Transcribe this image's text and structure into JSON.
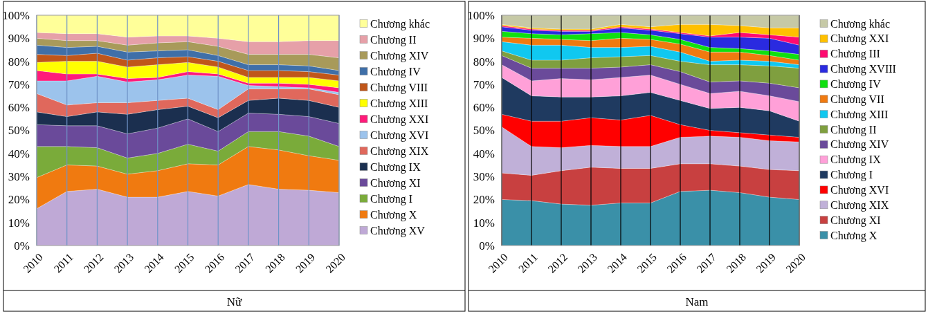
{
  "chart_data": [
    {
      "type": "area",
      "title": "Nữ",
      "stacked": true,
      "legend": "right",
      "grid": "x",
      "categories": [
        "2010",
        "2011",
        "2012",
        "2013",
        "2014",
        "2015",
        "2016",
        "2017",
        "2018",
        "2019",
        "2020"
      ],
      "ylim": [
        0,
        100
      ],
      "yticks": [
        {
          "value": 0,
          "label": "0%"
        },
        {
          "value": 10,
          "label": "10%"
        },
        {
          "value": 20,
          "label": "20%"
        },
        {
          "value": 30,
          "label": "30%"
        },
        {
          "value": 40,
          "label": "40%"
        },
        {
          "value": 50,
          "label": "50%"
        },
        {
          "value": 60,
          "label": "60%"
        },
        {
          "value": 70,
          "label": "70%"
        },
        {
          "value": 80,
          "label": "80%"
        },
        {
          "value": 90,
          "label": "90%"
        },
        {
          "value": 100,
          "label": "100%"
        }
      ],
      "series": [
        {
          "name": "Chương XV",
          "color": "#bfa9d6",
          "values": [
            16,
            23.5,
            24.5,
            21,
            21,
            23.5,
            21.5,
            26.5,
            24.5,
            24,
            23
          ]
        },
        {
          "name": "Chương X",
          "color": "#f07a10",
          "values": [
            13.5,
            11.5,
            10,
            10,
            11.5,
            12,
            13.5,
            16.5,
            17,
            15,
            14
          ]
        },
        {
          "name": "Chương I",
          "color": "#7aab3a",
          "values": [
            13.5,
            8,
            8,
            7,
            7.5,
            8.5,
            6,
            6.5,
            8,
            8.5,
            6
          ]
        },
        {
          "name": "Chương XI",
          "color": "#6a4a9a",
          "values": [
            9.5,
            9,
            9.5,
            10.5,
            11,
            11,
            8.5,
            8,
            7.5,
            8.5,
            10
          ]
        },
        {
          "name": "Chương IX",
          "color": "#1b2f4f",
          "values": [
            5.5,
            4,
            6,
            8.5,
            8,
            5.5,
            6,
            5.5,
            7,
            7,
            7
          ]
        },
        {
          "name": "Chương XIX",
          "color": "#e0685c",
          "values": [
            8,
            5,
            4,
            5,
            4,
            3.5,
            3.5,
            5,
            4,
            5,
            5.5
          ]
        },
        {
          "name": "Chương XVI",
          "color": "#9cc3ec",
          "values": [
            5.5,
            10.5,
            11.5,
            9,
            9,
            10,
            14.5,
            1.5,
            1,
            0.5,
            1
          ]
        },
        {
          "name": "Chương XXI",
          "color": "#ff1a7a",
          "values": [
            4.5,
            3,
            1,
            1.5,
            1,
            1.5,
            1,
            1,
            1.5,
            1.5,
            2
          ]
        },
        {
          "name": "Chương XIII",
          "color": "#ffff00",
          "values": [
            3.5,
            5.5,
            5.5,
            5,
            5.5,
            4,
            3,
            2.5,
            2.5,
            3,
            3
          ]
        },
        {
          "name": "Chương VIII",
          "color": "#c0561a",
          "values": [
            3.5,
            2.5,
            3.5,
            3,
            3,
            2.5,
            2.5,
            3,
            3,
            2.5,
            2.5
          ]
        },
        {
          "name": "Chương IV",
          "color": "#3f6fa8",
          "values": [
            4,
            3.5,
            3,
            3.5,
            3,
            3,
            2.5,
            2.5,
            2.5,
            2.5,
            2
          ]
        },
        {
          "name": "Chương XIV",
          "color": "#a89a5a",
          "values": [
            3,
            3,
            2.5,
            3,
            3.5,
            3.5,
            4,
            4.5,
            4.5,
            5,
            5.5
          ]
        },
        {
          "name": "Chương II",
          "color": "#e6a0a8",
          "values": [
            2.5,
            3,
            3,
            3.5,
            3,
            2.5,
            3.5,
            5.5,
            5.5,
            6,
            7.5
          ]
        },
        {
          "name": "Chương khác",
          "color": "#ffff99",
          "values": [
            7.5,
            8,
            8,
            9.5,
            9,
            9,
            10,
            11.5,
            11.5,
            11,
            11
          ]
        }
      ]
    },
    {
      "type": "area",
      "title": "Nam",
      "stacked": true,
      "legend": "right",
      "grid": "x",
      "categories": [
        "2010",
        "2011",
        "2012",
        "2013",
        "2014",
        "2015",
        "2016",
        "2017",
        "2018",
        "2019",
        "2020"
      ],
      "ylim": [
        0,
        100
      ],
      "yticks": [
        {
          "value": 0,
          "label": "0%"
        },
        {
          "value": 10,
          "label": "10%"
        },
        {
          "value": 20,
          "label": "20%"
        },
        {
          "value": 30,
          "label": "30%"
        },
        {
          "value": 40,
          "label": "40%"
        },
        {
          "value": 50,
          "label": "50%"
        },
        {
          "value": 60,
          "label": "60%"
        },
        {
          "value": 70,
          "label": "70%"
        },
        {
          "value": 80,
          "label": "80%"
        },
        {
          "value": 90,
          "label": "90%"
        },
        {
          "value": 100,
          "label": "100%"
        }
      ],
      "series": [
        {
          "name": "Chương X",
          "color": "#3a90a8",
          "values": [
            20,
            19.5,
            18,
            17.5,
            18.5,
            18.5,
            23.5,
            24,
            23,
            21,
            20
          ]
        },
        {
          "name": "Chương XI",
          "color": "#c84040",
          "values": [
            11.5,
            11,
            14.5,
            16.5,
            15,
            15,
            12,
            11.5,
            11.5,
            12,
            12.5
          ]
        },
        {
          "name": "Chương XIX",
          "color": "#c0b0d8",
          "values": [
            20,
            12.5,
            10,
            9.5,
            9.5,
            9.5,
            11.5,
            12,
            12.5,
            12.5,
            12.5
          ]
        },
        {
          "name": "Chương XVI",
          "color": "#ff0000",
          "values": [
            5.5,
            11,
            11.5,
            12,
            11.5,
            13.5,
            5.5,
            2.5,
            2,
            2.5,
            2
          ]
        },
        {
          "name": "Chương I",
          "color": "#1f3a60",
          "values": [
            16,
            11,
            10.5,
            9,
            10.5,
            10,
            10.5,
            9.5,
            11,
            10.5,
            7
          ]
        },
        {
          "name": "Chương IX",
          "color": "#ffa0d8",
          "values": [
            5.5,
            6.5,
            8,
            7.5,
            8,
            7.5,
            7,
            6.5,
            7,
            6.5,
            8.5
          ]
        },
        {
          "name": "Chương XIV",
          "color": "#6a4a9a",
          "values": [
            4,
            5.5,
            4.5,
            5,
            4.5,
            4.5,
            5.5,
            5,
            4.5,
            5.5,
            6
          ]
        },
        {
          "name": "Chương II",
          "color": "#7f9f3f",
          "values": [
            2,
            3.5,
            3.5,
            4.5,
            4.5,
            4,
            4.5,
            7.5,
            7,
            7.5,
            8.5
          ]
        },
        {
          "name": "Chương XIII",
          "color": "#10c8f0",
          "values": [
            4,
            6.5,
            6.5,
            4.5,
            4,
            4,
            4,
            1.5,
            2,
            2,
            1.5
          ]
        },
        {
          "name": "Chương VII",
          "color": "#f07a10",
          "values": [
            2,
            3,
            2.5,
            3,
            4,
            3,
            3.5,
            4,
            3.5,
            2.5,
            2
          ]
        },
        {
          "name": "Chương IV",
          "color": "#10e010",
          "values": [
            2.5,
            2,
            2,
            3,
            2.5,
            2,
            2,
            2,
            1.5,
            2,
            2.5
          ]
        },
        {
          "name": "Chương XVIII",
          "color": "#2a2ae0",
          "values": [
            2,
            1.5,
            1.5,
            1,
            2,
            2,
            2.5,
            4.5,
            5,
            5.5,
            4
          ]
        },
        {
          "name": "Chương III",
          "color": "#ff0a70",
          "values": [
            0.5,
            0.5,
            0.5,
            0.5,
            0.5,
            0.5,
            0.5,
            0.5,
            2,
            1.5,
            3.5
          ]
        },
        {
          "name": "Chương XXI",
          "color": "#ffc000",
          "values": [
            0.5,
            0.5,
            0.5,
            0.5,
            1,
            1,
            3.5,
            5,
            3,
            3,
            4
          ]
        },
        {
          "name": "Chương khác",
          "color": "#c6c9a6",
          "values": [
            4,
            5.5,
            6,
            6,
            4,
            5,
            4,
            4,
            4.5,
            5.5,
            5.5
          ]
        }
      ]
    }
  ]
}
